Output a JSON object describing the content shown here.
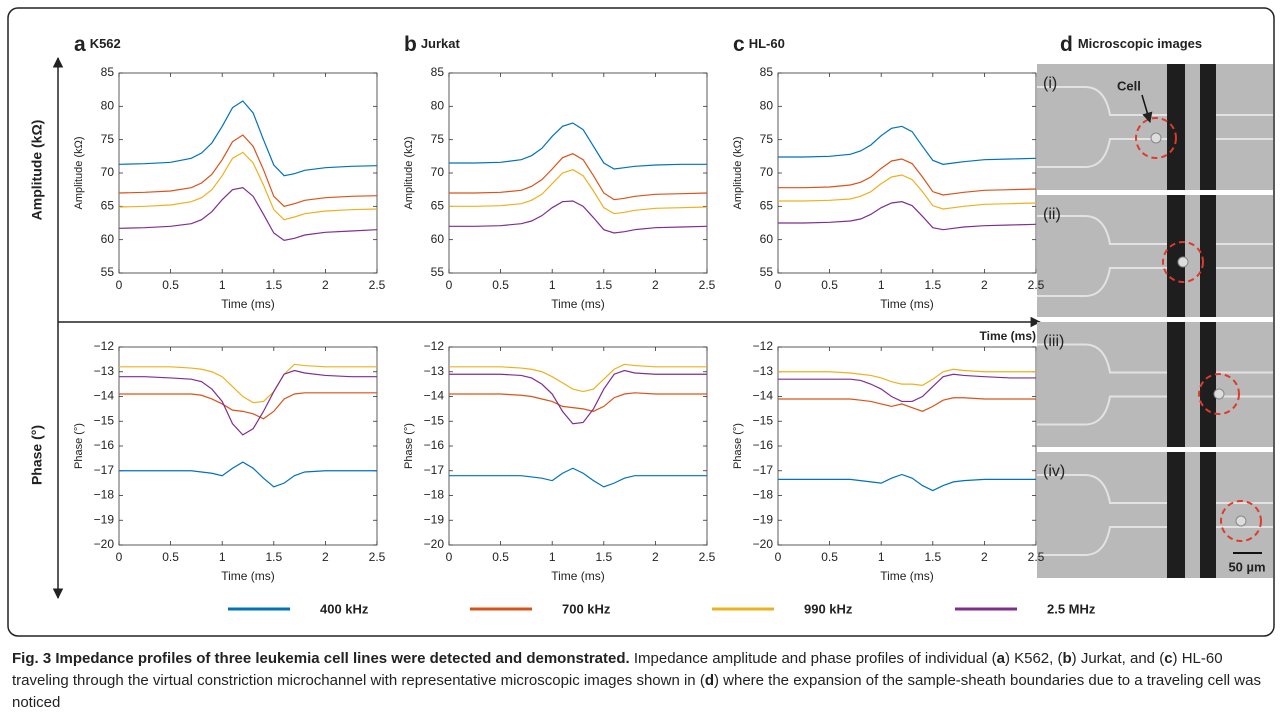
{
  "chart_data": [
    {
      "type": "line",
      "panel": "a",
      "title": "K562",
      "y_label": "Amplitude (kΩ)",
      "x_label": "Time (ms)",
      "x": [
        0,
        0.25,
        0.5,
        0.7,
        0.8,
        0.9,
        1.0,
        1.1,
        1.2,
        1.3,
        1.4,
        1.5,
        1.6,
        1.7,
        1.8,
        2.0,
        2.25,
        2.5
      ],
      "xlim": [
        0,
        2.5
      ],
      "xticks": [
        0,
        0.5,
        1,
        1.5,
        2,
        2.5
      ],
      "ylim": [
        55,
        85
      ],
      "yticks": [
        55,
        60,
        65,
        70,
        75,
        80,
        85
      ],
      "series": [
        {
          "values": [
            71.3,
            71.4,
            71.6,
            72.2,
            73,
            74.5,
            77,
            79.8,
            80.8,
            79,
            75,
            71.2,
            69.6,
            69.9,
            70.4,
            70.8,
            71,
            71.1
          ]
        },
        {
          "values": [
            67,
            67.1,
            67.3,
            67.8,
            68.5,
            69.8,
            72,
            74.7,
            75.7,
            74,
            70.5,
            66.5,
            65,
            65.4,
            65.9,
            66.3,
            66.5,
            66.6
          ]
        },
        {
          "values": [
            64.9,
            65,
            65.2,
            65.7,
            66.3,
            67.5,
            69.6,
            72.2,
            73.1,
            71.5,
            68.2,
            64.5,
            63,
            63.4,
            63.9,
            64.3,
            64.5,
            64.6
          ]
        },
        {
          "values": [
            61.7,
            61.8,
            62,
            62.4,
            63,
            64.2,
            66,
            67.5,
            67.8,
            66.5,
            63.8,
            61,
            59.9,
            60.2,
            60.7,
            61.1,
            61.3,
            61.5
          ]
        }
      ]
    },
    {
      "type": "line",
      "panel": "b",
      "title": "Jurkat",
      "y_label": "Amplitude (kΩ)",
      "x_label": "Time (ms)",
      "x": [
        0,
        0.25,
        0.5,
        0.7,
        0.8,
        0.9,
        1.0,
        1.1,
        1.2,
        1.3,
        1.4,
        1.5,
        1.6,
        1.7,
        1.8,
        2.0,
        2.25,
        2.5
      ],
      "xlim": [
        0,
        2.5
      ],
      "xticks": [
        0,
        0.5,
        1,
        1.5,
        2,
        2.5
      ],
      "ylim": [
        55,
        85
      ],
      "yticks": [
        55,
        60,
        65,
        70,
        75,
        80,
        85
      ],
      "series": [
        {
          "values": [
            71.5,
            71.5,
            71.6,
            72,
            72.6,
            73.7,
            75.5,
            77,
            77.5,
            76.5,
            74,
            71.5,
            70.6,
            70.8,
            71,
            71.2,
            71.3,
            71.3
          ]
        },
        {
          "values": [
            67,
            67,
            67.1,
            67.4,
            68,
            69,
            70.6,
            72.3,
            72.9,
            72,
            69.6,
            67,
            66,
            66.2,
            66.5,
            66.8,
            66.9,
            67
          ]
        },
        {
          "values": [
            65,
            65,
            65.1,
            65.4,
            65.9,
            66.8,
            68.4,
            70,
            70.5,
            69.6,
            67.3,
            64.8,
            63.9,
            64.1,
            64.4,
            64.7,
            64.8,
            64.9
          ]
        },
        {
          "values": [
            62,
            62,
            62.1,
            62.4,
            62.8,
            63.6,
            64.8,
            65.7,
            65.8,
            65,
            63.3,
            61.5,
            61,
            61.2,
            61.5,
            61.8,
            61.9,
            62
          ]
        }
      ]
    },
    {
      "type": "line",
      "panel": "c",
      "title": "HL-60",
      "y_label": "Amplitude (kΩ)",
      "x_label": "Time (ms)",
      "x": [
        0,
        0.25,
        0.5,
        0.7,
        0.8,
        0.9,
        1.0,
        1.1,
        1.2,
        1.3,
        1.4,
        1.5,
        1.6,
        1.7,
        1.8,
        2.0,
        2.25,
        2.5
      ],
      "xlim": [
        0,
        2.5
      ],
      "xticks": [
        0,
        0.5,
        1,
        1.5,
        2,
        2.5
      ],
      "ylim": [
        55,
        85
      ],
      "yticks": [
        55,
        60,
        65,
        70,
        75,
        80,
        85
      ],
      "series": [
        {
          "values": [
            72.4,
            72.4,
            72.5,
            72.8,
            73.3,
            74.2,
            75.6,
            76.7,
            77,
            76.2,
            74,
            71.9,
            71.3,
            71.5,
            71.7,
            72,
            72.1,
            72.2
          ]
        },
        {
          "values": [
            67.8,
            67.8,
            67.9,
            68.2,
            68.6,
            69.4,
            70.7,
            71.8,
            72.1,
            71.4,
            69.4,
            67.2,
            66.7,
            66.9,
            67.1,
            67.4,
            67.5,
            67.6
          ]
        },
        {
          "values": [
            65.8,
            65.8,
            65.9,
            66.1,
            66.5,
            67.2,
            68.4,
            69.4,
            69.7,
            69,
            67.2,
            65.1,
            64.6,
            64.8,
            65,
            65.3,
            65.4,
            65.5
          ]
        },
        {
          "values": [
            62.5,
            62.5,
            62.6,
            62.8,
            63.1,
            63.8,
            64.8,
            65.5,
            65.7,
            65.1,
            63.5,
            61.8,
            61.5,
            61.7,
            61.9,
            62.1,
            62.2,
            62.3
          ]
        }
      ]
    },
    {
      "type": "line",
      "y_label": "Phase (°)",
      "x_label": "Time (ms)",
      "x": [
        0,
        0.25,
        0.5,
        0.7,
        0.8,
        0.9,
        1.0,
        1.1,
        1.2,
        1.3,
        1.4,
        1.5,
        1.6,
        1.7,
        1.8,
        2.0,
        2.25,
        2.5
      ],
      "xlim": [
        0,
        2.5
      ],
      "xticks": [
        0,
        0.5,
        1,
        1.5,
        2,
        2.5
      ],
      "ylim": [
        -20,
        -12
      ],
      "yticks": [
        {
          "value": -20,
          "label": "−20"
        },
        {
          "value": -19,
          "label": "−19"
        },
        {
          "value": -18,
          "label": "−18"
        },
        {
          "value": -17,
          "label": "−17"
        },
        {
          "value": -16,
          "label": "−16"
        },
        {
          "value": -15,
          "label": "−15"
        },
        {
          "value": -14,
          "label": "−14"
        },
        {
          "value": -13,
          "label": "−13"
        },
        {
          "value": -12,
          "label": "−12"
        }
      ],
      "series": [
        {
          "values": [
            -17,
            -17,
            -17,
            -17,
            -17.05,
            -17.1,
            -17.2,
            -16.9,
            -16.65,
            -16.9,
            -17.3,
            -17.65,
            -17.5,
            -17.2,
            -17.05,
            -17,
            -17,
            -17
          ]
        },
        {
          "values": [
            -13.9,
            -13.9,
            -13.9,
            -13.9,
            -13.95,
            -14.1,
            -14.3,
            -14.55,
            -14.6,
            -14.7,
            -14.9,
            -14.6,
            -14.1,
            -13.9,
            -13.85,
            -13.85,
            -13.85,
            -13.85
          ]
        },
        {
          "values": [
            -12.8,
            -12.8,
            -12.8,
            -12.85,
            -12.9,
            -13,
            -13.2,
            -13.6,
            -14,
            -14.25,
            -14.2,
            -13.8,
            -13.1,
            -12.7,
            -12.75,
            -12.8,
            -12.8,
            -12.8
          ]
        },
        {
          "values": [
            -13.2,
            -13.2,
            -13.25,
            -13.3,
            -13.4,
            -13.7,
            -14.2,
            -15.1,
            -15.55,
            -15.3,
            -14.6,
            -13.8,
            -13.1,
            -12.95,
            -13.05,
            -13.15,
            -13.2,
            -13.2
          ]
        }
      ]
    },
    {
      "type": "line",
      "y_label": "Phase (°)",
      "x_label": "Time (ms)",
      "x": [
        0,
        0.25,
        0.5,
        0.7,
        0.8,
        0.9,
        1.0,
        1.1,
        1.2,
        1.3,
        1.4,
        1.5,
        1.6,
        1.7,
        1.8,
        2.0,
        2.25,
        2.5
      ],
      "xlim": [
        0,
        2.5
      ],
      "xticks": [
        0,
        0.5,
        1,
        1.5,
        2,
        2.5
      ],
      "ylim": [
        -20,
        -12
      ],
      "yticks": [
        {
          "value": -20,
          "label": "−20"
        },
        {
          "value": -19,
          "label": "−19"
        },
        {
          "value": -18,
          "label": "−18"
        },
        {
          "value": -17,
          "label": "−17"
        },
        {
          "value": -16,
          "label": "−16"
        },
        {
          "value": -15,
          "label": "−15"
        },
        {
          "value": -14,
          "label": "−14"
        },
        {
          "value": -13,
          "label": "−13"
        },
        {
          "value": -12,
          "label": "−12"
        }
      ],
      "series": [
        {
          "values": [
            -17.2,
            -17.2,
            -17.2,
            -17.2,
            -17.25,
            -17.3,
            -17.4,
            -17.1,
            -16.9,
            -17.1,
            -17.4,
            -17.65,
            -17.5,
            -17.3,
            -17.2,
            -17.2,
            -17.2,
            -17.2
          ]
        },
        {
          "values": [
            -13.9,
            -13.9,
            -13.9,
            -13.95,
            -14,
            -14.1,
            -14.2,
            -14.4,
            -14.45,
            -14.5,
            -14.6,
            -14.4,
            -14.05,
            -13.9,
            -13.85,
            -13.9,
            -13.9,
            -13.9
          ]
        },
        {
          "values": [
            -12.8,
            -12.8,
            -12.8,
            -12.85,
            -12.9,
            -13,
            -13.2,
            -13.45,
            -13.7,
            -13.8,
            -13.7,
            -13.3,
            -12.9,
            -12.7,
            -12.75,
            -12.8,
            -12.8,
            -12.8
          ]
        },
        {
          "values": [
            -13.1,
            -13.1,
            -13.1,
            -13.15,
            -13.25,
            -13.5,
            -13.9,
            -14.6,
            -15.1,
            -15.05,
            -14.5,
            -13.7,
            -13.1,
            -12.95,
            -13.05,
            -13.1,
            -13.1,
            -13.1
          ]
        }
      ]
    },
    {
      "type": "line",
      "y_label": "Phase (°)",
      "x_label": "Time (ms)",
      "x": [
        0,
        0.25,
        0.5,
        0.7,
        0.8,
        0.9,
        1.0,
        1.1,
        1.2,
        1.3,
        1.4,
        1.5,
        1.6,
        1.7,
        1.8,
        2.0,
        2.25,
        2.5
      ],
      "xlim": [
        0,
        2.5
      ],
      "xticks": [
        0,
        0.5,
        1,
        1.5,
        2,
        2.5
      ],
      "ylim": [
        -20,
        -12
      ],
      "yticks": [
        {
          "value": -20,
          "label": "−20"
        },
        {
          "value": -19,
          "label": "−19"
        },
        {
          "value": -18,
          "label": "−18"
        },
        {
          "value": -17,
          "label": "−17"
        },
        {
          "value": -16,
          "label": "−16"
        },
        {
          "value": -15,
          "label": "−15"
        },
        {
          "value": -14,
          "label": "−14"
        },
        {
          "value": -13,
          "label": "−13"
        },
        {
          "value": -12,
          "label": "−12"
        }
      ],
      "series": [
        {
          "values": [
            -17.35,
            -17.35,
            -17.35,
            -17.35,
            -17.4,
            -17.45,
            -17.5,
            -17.3,
            -17.15,
            -17.3,
            -17.6,
            -17.8,
            -17.6,
            -17.45,
            -17.4,
            -17.35,
            -17.35,
            -17.35
          ]
        },
        {
          "values": [
            -14.1,
            -14.1,
            -14.1,
            -14.1,
            -14.15,
            -14.2,
            -14.3,
            -14.4,
            -14.3,
            -14.45,
            -14.6,
            -14.4,
            -14.15,
            -14.05,
            -14.05,
            -14.1,
            -14.1,
            -14.1
          ]
        },
        {
          "values": [
            -13,
            -13,
            -13,
            -13.05,
            -13.1,
            -13.15,
            -13.25,
            -13.4,
            -13.5,
            -13.5,
            -13.55,
            -13.3,
            -13,
            -12.9,
            -12.95,
            -13,
            -13,
            -13
          ]
        },
        {
          "values": [
            -13.3,
            -13.3,
            -13.3,
            -13.3,
            -13.35,
            -13.5,
            -13.7,
            -14,
            -14.2,
            -14.2,
            -14,
            -13.6,
            -13.2,
            -13.1,
            -13.15,
            -13.2,
            -13.25,
            -13.25
          ]
        }
      ]
    }
  ],
  "legend": [
    {
      "name": "400 kHz",
      "color": "#0072bd"
    },
    {
      "name": "700 kHz",
      "color": "#d95319"
    },
    {
      "name": "990 kHz",
      "color": "#edb120"
    },
    {
      "name": "2.5 MHz",
      "color": "#7e2f8e"
    }
  ],
  "row_labels": [
    "Amplitude (kΩ)",
    "Phase (°)"
  ],
  "time_axis_label": "Time (ms)",
  "panel_d": {
    "label": "d",
    "title": "Microscopic images",
    "frames": [
      "(i)",
      "(ii)",
      "(iii)",
      "(iv)"
    ],
    "cell_label": "Cell",
    "scale_bar": "50 µm"
  },
  "caption": [
    {
      "text": "Fig. 3 Impedance profiles of three leukemia cell lines were detected and demonstrated.",
      "bold": true
    },
    {
      "text": " Impedance amplitude and phase profiles of individual (",
      "bold": false
    },
    {
      "text": "a",
      "bold": true
    },
    {
      "text": ") K562, (",
      "bold": false
    },
    {
      "text": "b",
      "bold": true
    },
    {
      "text": ") Jurkat, and (",
      "bold": false
    },
    {
      "text": "c",
      "bold": true
    },
    {
      "text": ") HL-60 traveling through the virtual constriction microchannel with representative microscopic images shown in (",
      "bold": false
    },
    {
      "text": "d",
      "bold": true
    },
    {
      "text": ") where the expansion of the sample-sheath boundaries due to a traveling cell was noticed",
      "bold": false
    }
  ]
}
